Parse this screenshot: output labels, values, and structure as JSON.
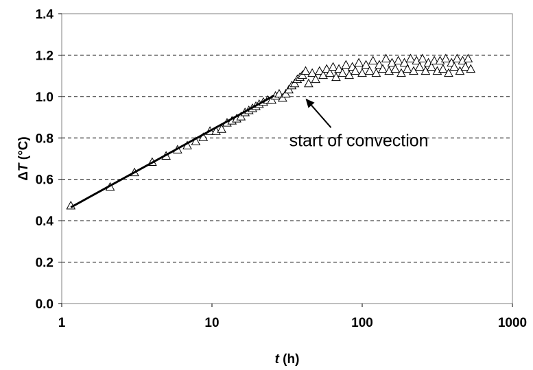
{
  "chart_data": {
    "type": "scatter",
    "title": "",
    "xlabel": {
      "var": "t",
      "unit": " (h)"
    },
    "ylabel": {
      "prefix": "Δ",
      "var": "T",
      "unit": " (°C)"
    },
    "xscale": "log",
    "xlim": [
      1,
      1000
    ],
    "ylim": [
      0,
      1.4
    ],
    "xticks": [
      1,
      10,
      100,
      1000
    ],
    "xtick_labels": [
      "1",
      "10",
      "100",
      "1000"
    ],
    "yticks": [
      0.0,
      0.2,
      0.4,
      0.6,
      0.8,
      1.0,
      1.2,
      1.4
    ],
    "ytick_labels": [
      "0.0",
      "0.2",
      "0.4",
      "0.6",
      "0.8",
      "1.0",
      "1.2",
      "1.4"
    ],
    "grid": "horizontal dashed",
    "legend": "none",
    "marker": "open-triangle",
    "series": [
      {
        "x": [
          1.15,
          2.1,
          3.05,
          4.0,
          4.95,
          5.9,
          6.85,
          7.8,
          8.75,
          9.7,
          10.65,
          11.6,
          12.6,
          13.6,
          14.6,
          15.6,
          16.6,
          17.6,
          18.6,
          19.6,
          20.6,
          22.0,
          23.5,
          25.0,
          26.5,
          28.0,
          29.5,
          31.0,
          32.5,
          34.0,
          35.5,
          37.0,
          38.5,
          40.0,
          42.0,
          44.0,
          46.5,
          49.0,
          52.0,
          55.0,
          58.0,
          61.0,
          64.0,
          67.0,
          70.0,
          74.0,
          78.0,
          82.0,
          86.0,
          90.0,
          95.0,
          100.0,
          106.0,
          112.0,
          118.0,
          124.0,
          130.0,
          137.0,
          144.0,
          151.0,
          158.0,
          166.0,
          174.0,
          182.0,
          191.0,
          200.0,
          210.0,
          220.0,
          230.0,
          241.0,
          252.0,
          264.0,
          276.0,
          289.0,
          302.0,
          316.0,
          330.0,
          345.0,
          360.0,
          376.0,
          393.0,
          410.0,
          428.0,
          447.0,
          466.0,
          486.0,
          507.0,
          528.0
        ],
        "y": [
          0.47,
          0.56,
          0.63,
          0.68,
          0.71,
          0.74,
          0.76,
          0.78,
          0.8,
          0.83,
          0.83,
          0.84,
          0.87,
          0.88,
          0.89,
          0.9,
          0.92,
          0.93,
          0.94,
          0.95,
          0.96,
          0.97,
          0.98,
          0.98,
          1.0,
          1.01,
          0.99,
          1.01,
          1.03,
          1.05,
          1.06,
          1.08,
          1.09,
          1.1,
          1.12,
          1.06,
          1.11,
          1.08,
          1.12,
          1.1,
          1.13,
          1.11,
          1.14,
          1.09,
          1.13,
          1.11,
          1.15,
          1.1,
          1.14,
          1.12,
          1.16,
          1.11,
          1.15,
          1.12,
          1.17,
          1.11,
          1.15,
          1.13,
          1.18,
          1.12,
          1.16,
          1.13,
          1.17,
          1.11,
          1.16,
          1.13,
          1.18,
          1.12,
          1.17,
          1.14,
          1.18,
          1.12,
          1.16,
          1.14,
          1.17,
          1.12,
          1.17,
          1.13,
          1.18,
          1.11,
          1.16,
          1.14,
          1.18,
          1.12,
          1.17,
          1.14,
          1.18,
          1.13
        ]
      }
    ],
    "fit_line": {
      "x": [
        1.15,
        26.0
      ],
      "y": [
        0.465,
        1.005
      ]
    },
    "annotation": {
      "text": "start of convection",
      "text_anchor": {
        "x": 95,
        "y": 0.76
      },
      "arrow_from": {
        "x": 62,
        "y": 0.85
      },
      "arrow_to": {
        "x": 42,
        "y": 0.99
      }
    }
  }
}
